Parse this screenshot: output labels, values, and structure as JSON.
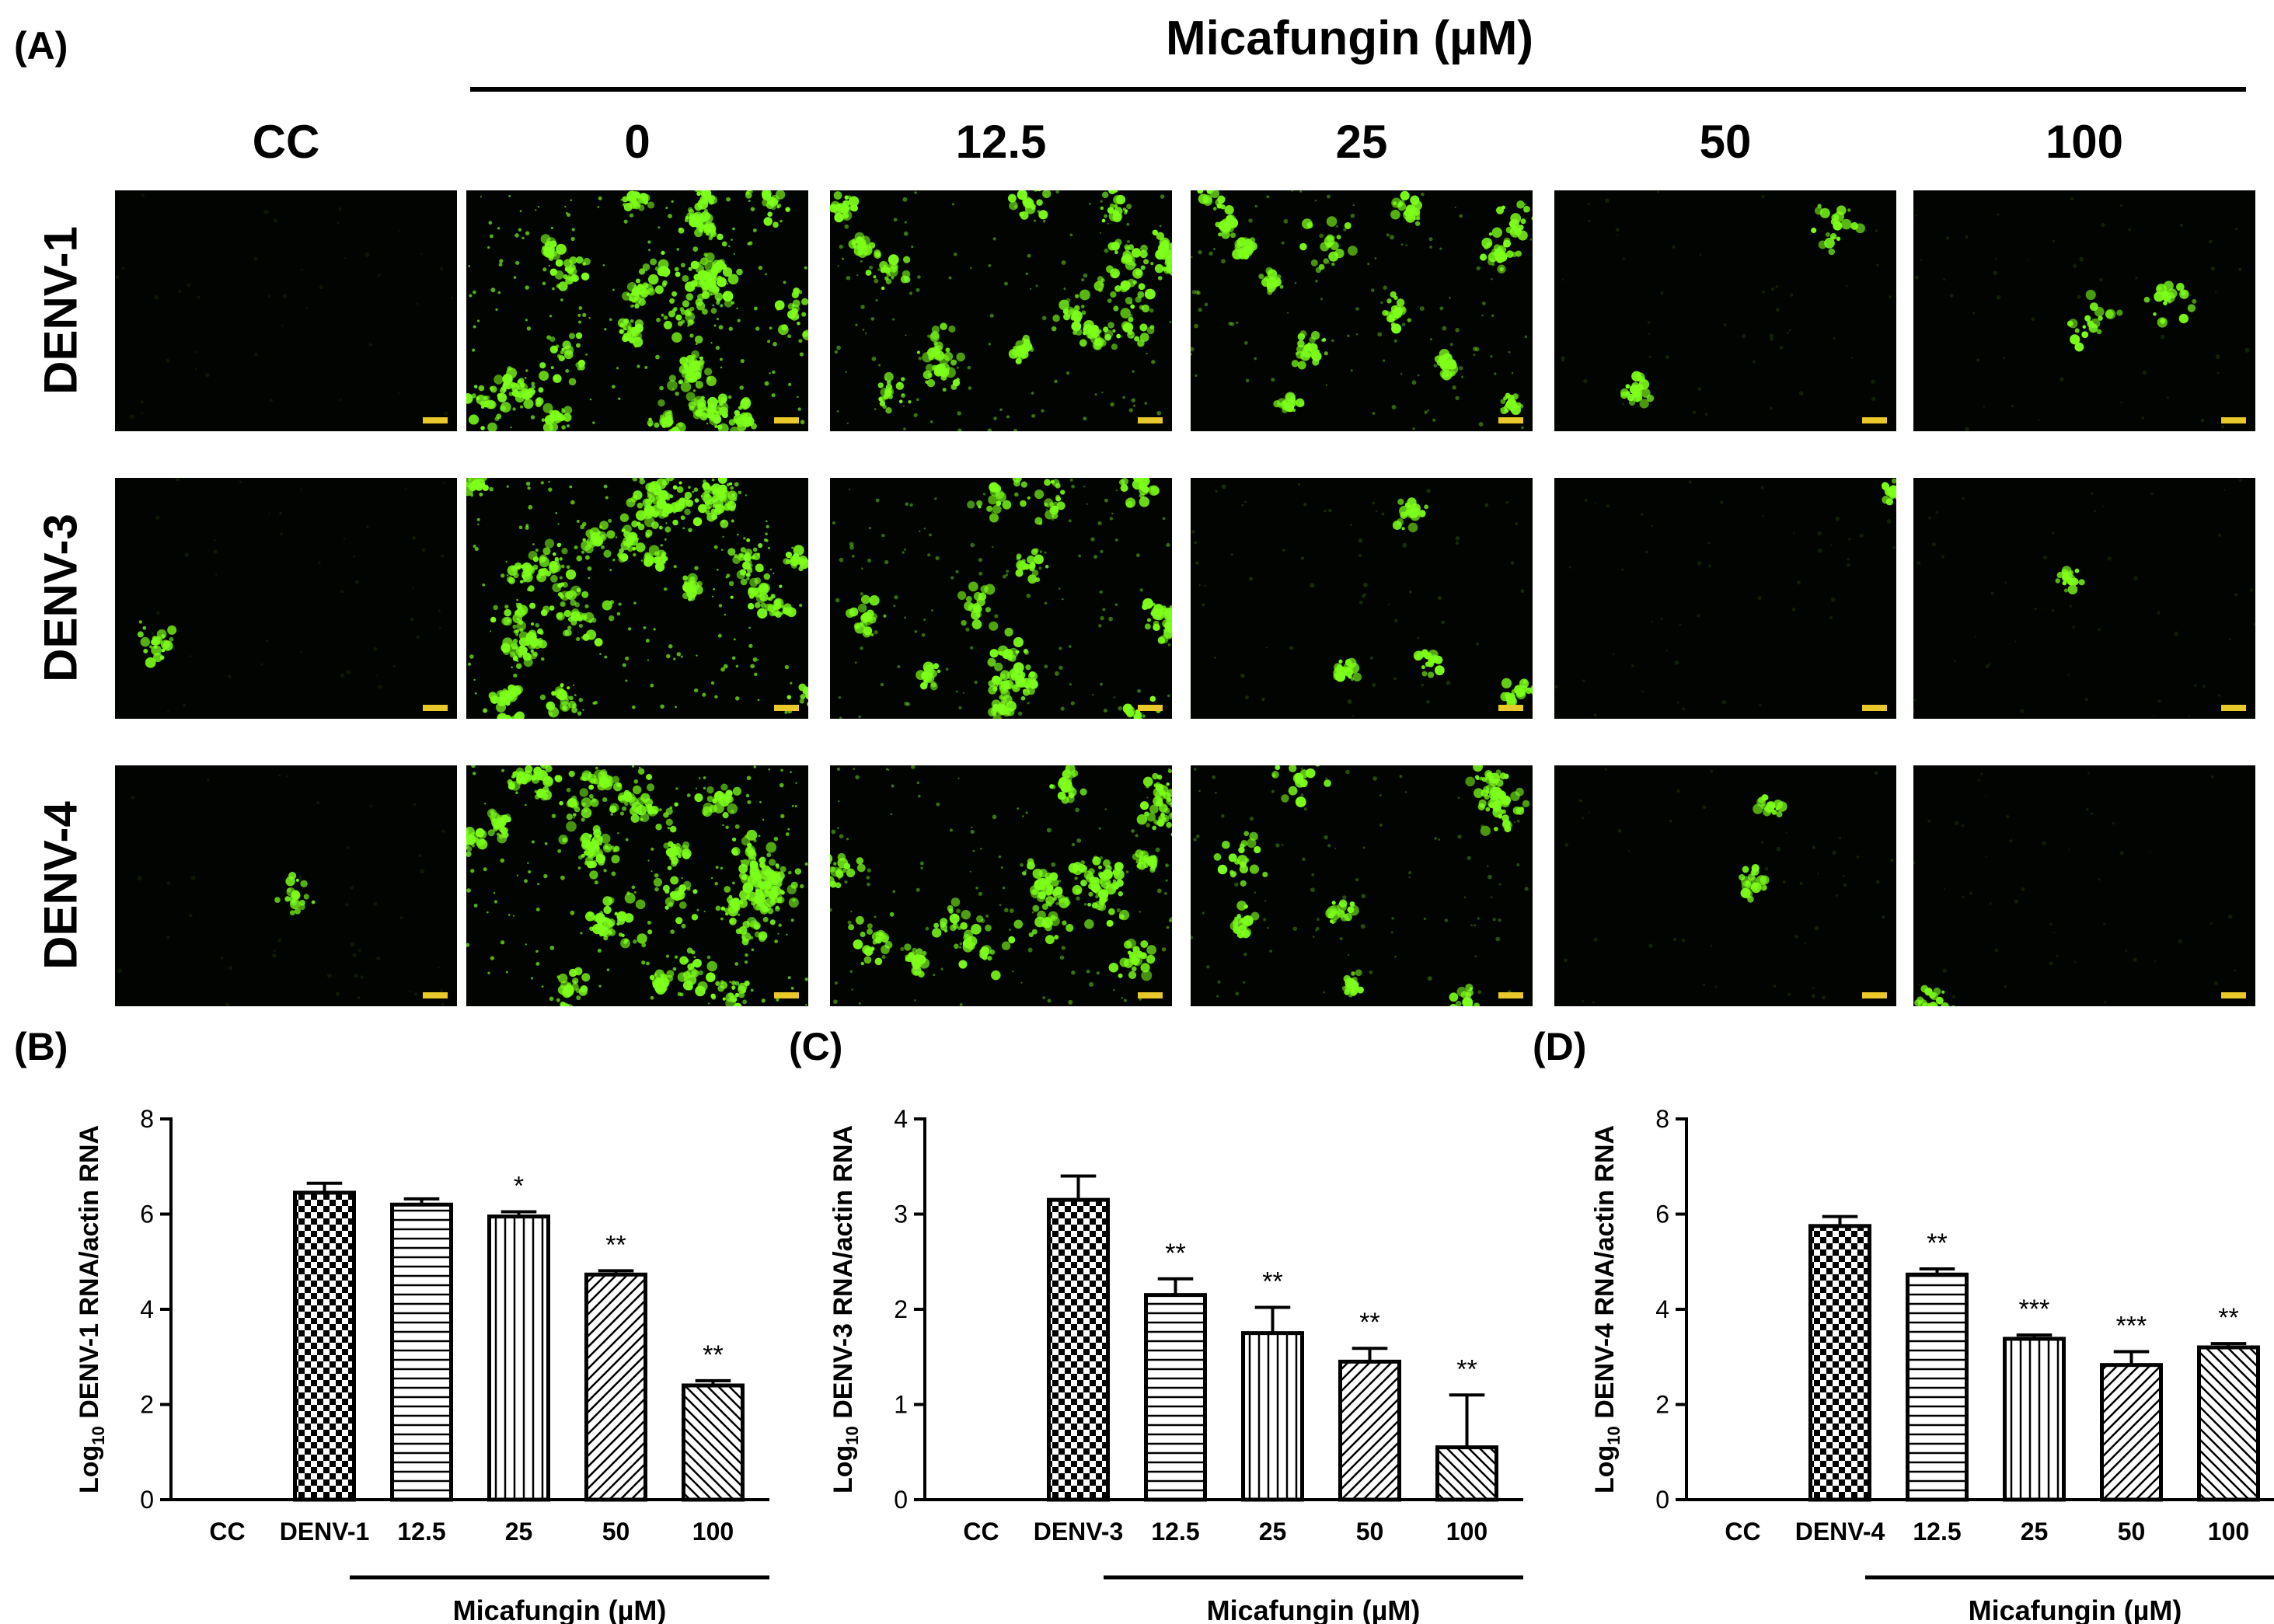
{
  "panelA": {
    "letter": "(A)",
    "drug_header": "Micafungin (µM)",
    "columns": [
      "CC",
      "0",
      "12.5",
      "25",
      "50",
      "100"
    ],
    "rows": [
      "DENV-1",
      "DENV-3",
      "DENV-4"
    ],
    "intensity": [
      [
        0.0,
        1.0,
        0.62,
        0.5,
        0.07,
        0.07
      ],
      [
        0.02,
        1.0,
        0.55,
        0.15,
        0.05,
        0.04
      ],
      [
        0.02,
        1.0,
        0.6,
        0.35,
        0.06,
        0.04
      ]
    ],
    "fluorescence_color": "#7dff1a",
    "scale_bar_color": "#e8c82a"
  },
  "panelB": {
    "letter": "(B)"
  },
  "panelC": {
    "letter": "(C)"
  },
  "panelD": {
    "letter": "(D)"
  },
  "chart_data": [
    {
      "type": "bar",
      "ylabel": "Log10 DENV-1 RNA/actin RNA",
      "ylabel_base": "Log",
      "ylabel_sub": "10",
      "ylabel_rest": " DENV-1 RNA/actin RNA",
      "categories": [
        "CC",
        "DENV-1",
        "12.5",
        "25",
        "50",
        "100"
      ],
      "values": [
        0,
        6.45,
        6.2,
        5.95,
        4.73,
        2.4
      ],
      "errors": [
        0,
        0.2,
        0.12,
        0.1,
        0.08,
        0.1
      ],
      "significance": [
        "",
        "",
        "",
        "*",
        "**",
        "**"
      ],
      "ylim": [
        0,
        8
      ],
      "yticks": [
        "0",
        "2",
        "4",
        "6",
        "8"
      ],
      "group_label": "Micafungin (µM)"
    },
    {
      "type": "bar",
      "ylabel": "Log10 DENV-3 RNA/actin RNA",
      "ylabel_base": "Log",
      "ylabel_sub": "10",
      "ylabel_rest": " DENV-3 RNA/actin RNA",
      "categories": [
        "CC",
        "DENV-3",
        "12.5",
        "25",
        "50",
        "100"
      ],
      "values": [
        0,
        3.15,
        2.15,
        1.75,
        1.45,
        0.55
      ],
      "errors": [
        0,
        0.25,
        0.17,
        0.27,
        0.14,
        0.55
      ],
      "significance": [
        "",
        "",
        "**",
        "**",
        "**",
        "**"
      ],
      "ylim": [
        0,
        4
      ],
      "yticks": [
        "0",
        "1",
        "2",
        "3",
        "4"
      ],
      "group_label": "Micafungin (µM)"
    },
    {
      "type": "bar",
      "ylabel": "Log10 DENV-4 RNA/actin RNA",
      "ylabel_base": "Log",
      "ylabel_sub": "10",
      "ylabel_rest": " DENV-4 RNA/actin RNA",
      "categories": [
        "CC",
        "DENV-4",
        "12.5",
        "25",
        "50",
        "100"
      ],
      "values": [
        0,
        5.75,
        4.73,
        3.38,
        2.83,
        3.2
      ],
      "errors": [
        0,
        0.2,
        0.12,
        0.08,
        0.28,
        0.08
      ],
      "significance": [
        "",
        "",
        "**",
        "***",
        "***",
        "**"
      ],
      "ylim": [
        0,
        8
      ],
      "yticks": [
        "0",
        "2",
        "4",
        "6",
        "8"
      ],
      "group_label": "Micafungin (µM)"
    }
  ]
}
